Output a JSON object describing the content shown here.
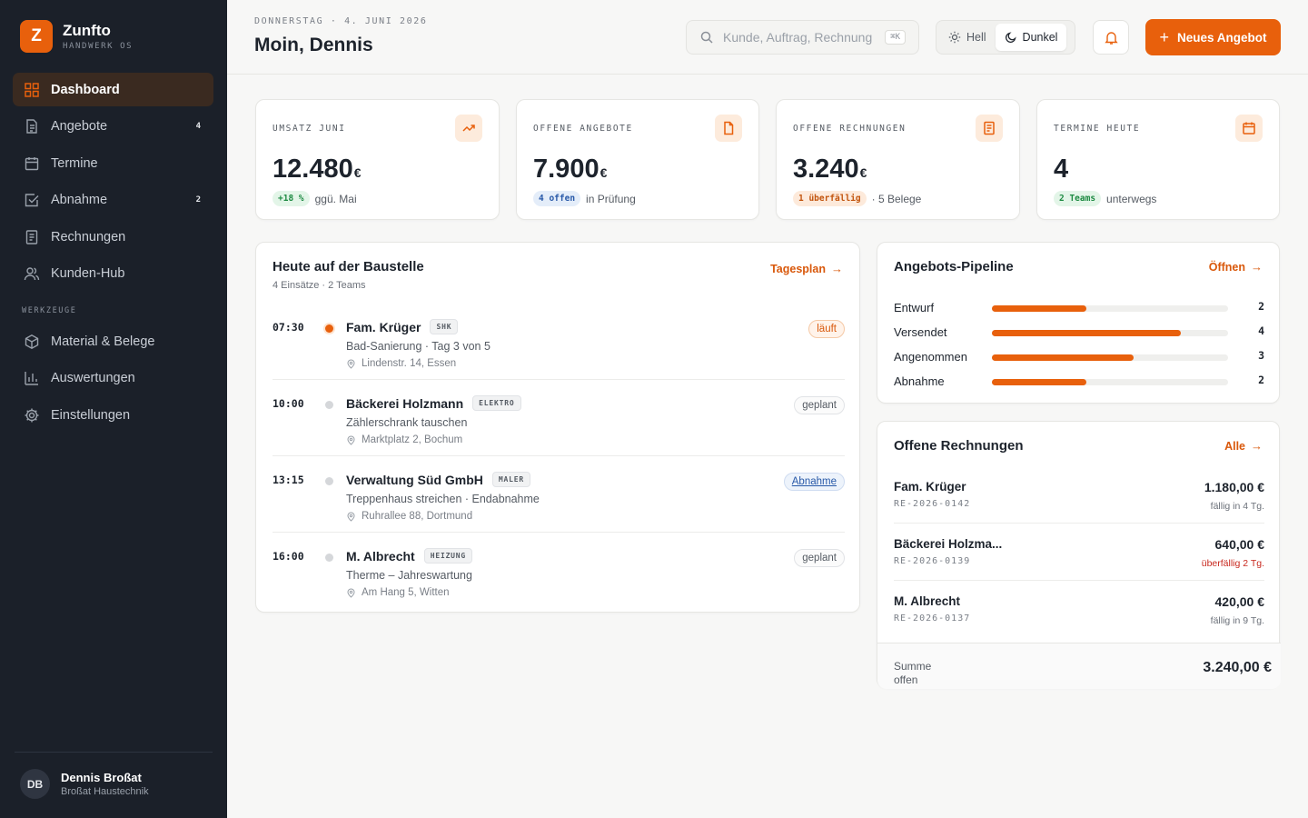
{
  "brand": {
    "logo_letter": "Z",
    "name": "Zunfto",
    "subtitle": "HANDWERK OS",
    "accent": "#e8600c"
  },
  "sidebar": {
    "items": [
      {
        "label": "Dashboard",
        "icon": "grid-icon",
        "active": true
      },
      {
        "label": "Angebote",
        "icon": "document-icon",
        "badge": "4"
      },
      {
        "label": "Termine",
        "icon": "calendar-icon"
      },
      {
        "label": "Abnahme",
        "icon": "check-square-icon",
        "badge": "2"
      },
      {
        "label": "Rechnungen",
        "icon": "receipt-icon"
      },
      {
        "label": "Kunden-Hub",
        "icon": "users-icon"
      }
    ],
    "section_label": "WERKZEUGE",
    "tools": [
      {
        "label": "Material & Belege",
        "icon": "box-icon"
      },
      {
        "label": "Auswertungen",
        "icon": "bar-chart-icon"
      },
      {
        "label": "Einstellungen",
        "icon": "gear-icon"
      }
    ],
    "user": {
      "initials": "DB",
      "name": "Dennis Broßat",
      "company": "Broßat Haustechnik"
    }
  },
  "header": {
    "date": "DONNERSTAG · 4. JUNI 2026",
    "greeting": "Moin, Dennis",
    "search_placeholder": "Kunde, Auftrag, Rechnung …",
    "search_shortcut": "⌘K",
    "theme_light": "Hell",
    "theme_dark": "Dunkel",
    "cta_label": "Neues Angebot"
  },
  "kpis": [
    {
      "label": "UMSATZ JUNI",
      "value": "12.480",
      "currency": "€",
      "pill": "+18 %",
      "pill_color": "green",
      "note": "ggü. Mai",
      "icon": "trending-up-icon"
    },
    {
      "label": "OFFENE ANGEBOTE",
      "value": "7.900",
      "currency": "€",
      "pill": "4 offen",
      "pill_color": "blue",
      "note": "in Prüfung",
      "icon": "file-icon"
    },
    {
      "label": "OFFENE RECHNUNGEN",
      "value": "3.240",
      "currency": "€",
      "pill": "1 überfällig",
      "pill_color": "orange",
      "note": "· 5 Belege",
      "icon": "receipt-icon"
    },
    {
      "label": "TERMINE HEUTE",
      "value": "4",
      "currency": "",
      "pill": "2 Teams",
      "pill_color": "green",
      "note": "unterwegs",
      "icon": "calendar-icon"
    }
  ],
  "today": {
    "title": "Heute auf der Baustelle",
    "subtitle": "4 Einsätze · 2 Teams",
    "link": "Tagesplan",
    "jobs": [
      {
        "time": "07:30",
        "customer": "Fam. Krüger",
        "trade": "SHK",
        "desc": "Bad-Sanierung · Tag 3 von 5",
        "address": "Lindenstr. 14, Essen",
        "status": "läuft",
        "state": "live"
      },
      {
        "time": "10:00",
        "customer": "Bäckerei Holzmann",
        "trade": "ELEKTRO",
        "desc": "Zählerschrank tauschen",
        "address": "Marktplatz 2, Bochum",
        "status": "geplant",
        "state": "planned"
      },
      {
        "time": "13:15",
        "customer": "Verwaltung Süd GmbH",
        "trade": "MALER",
        "desc": "Treppenhaus streichen · Endabnahme",
        "address": "Ruhrallee 88, Dortmund",
        "status": "Abnahme",
        "state": "abn"
      },
      {
        "time": "16:00",
        "customer": "M. Albrecht",
        "trade": "HEIZUNG",
        "desc": "Therme – Jahreswartung",
        "address": "Am Hang 5, Witten",
        "status": "geplant",
        "state": "planned"
      }
    ]
  },
  "pipeline": {
    "title": "Angebots-Pipeline",
    "link": "Öffnen",
    "max": 5,
    "rows": [
      {
        "label": "Entwurf",
        "value": 2
      },
      {
        "label": "Versendet",
        "value": 4
      },
      {
        "label": "Angenommen",
        "value": 3
      },
      {
        "label": "Abnahme",
        "value": 2
      }
    ]
  },
  "invoices": {
    "title": "Offene Rechnungen",
    "link": "Alle",
    "rows": [
      {
        "name": "Fam. Krüger",
        "number": "RE-2026-0142",
        "amount": "1.180,00 €",
        "due": "fällig in 4 Tg.",
        "late": false
      },
      {
        "name": "Bäckerei Holzma...",
        "number": "RE-2026-0139",
        "amount": "640,00 €",
        "due": "überfällig 2 Tg.",
        "late": true
      },
      {
        "name": "M. Albrecht",
        "number": "RE-2026-0137",
        "amount": "420,00 €",
        "due": "fällig in 9 Tg.",
        "late": false
      }
    ],
    "sum_label": "Summe offen",
    "sum_value": "3.240,00 €"
  }
}
